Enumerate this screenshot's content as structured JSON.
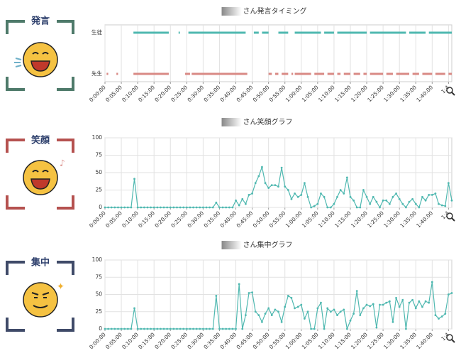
{
  "panel_labels": [
    "発言",
    "笑顔",
    "集中"
  ],
  "chart_data": [
    {
      "type": "timeline",
      "title": "さん発言タイミング",
      "xlim": [
        0,
        106
      ],
      "xticks": [
        {
          "value": 0,
          "label": "0:00:00"
        },
        {
          "value": 5,
          "label": "0:05:00"
        },
        {
          "value": 10,
          "label": "0:10:00"
        },
        {
          "value": 15,
          "label": "0:15:00"
        },
        {
          "value": 20,
          "label": "0:20:00"
        },
        {
          "value": 25,
          "label": "0:25:00"
        },
        {
          "value": 30,
          "label": "0:30:00"
        },
        {
          "value": 35,
          "label": "0:35:00"
        },
        {
          "value": 40,
          "label": "0:40:00"
        },
        {
          "value": 45,
          "label": "0:45:00"
        },
        {
          "value": 50,
          "label": "0:50:00"
        },
        {
          "value": 55,
          "label": "0:55:00"
        },
        {
          "value": 60,
          "label": "1:00:00"
        },
        {
          "value": 65,
          "label": "1:05:00"
        },
        {
          "value": 70,
          "label": "1:10:00"
        },
        {
          "value": 75,
          "label": "1:15:00"
        },
        {
          "value": 80,
          "label": "1:20:00"
        },
        {
          "value": 85,
          "label": "1:25:00"
        },
        {
          "value": 90,
          "label": "1:30:00"
        },
        {
          "value": 95,
          "label": "1:35:00"
        },
        {
          "value": 100,
          "label": "1:40:00"
        },
        {
          "value": 105,
          "label": "1:4"
        }
      ],
      "grid": true,
      "series": [
        {
          "name": "生徒",
          "color": "#4fb8b0",
          "segments": [
            [
              8.7,
              19.5
            ],
            [
              22.5,
              22.9
            ],
            [
              25.5,
              43
            ],
            [
              45.5,
              47
            ],
            [
              48,
              50
            ],
            [
              53,
              56
            ],
            [
              58,
              66
            ],
            [
              67,
              70
            ],
            [
              71,
              80
            ],
            [
              81,
              92
            ],
            [
              93,
              98
            ],
            [
              99,
              106
            ]
          ]
        },
        {
          "name": "先生",
          "color": "#d98a85",
          "segments": [
            [
              0.5,
              1
            ],
            [
              3.5,
              4
            ],
            [
              8.7,
              19.5
            ],
            [
              24.5,
              26
            ],
            [
              26.5,
              43.5
            ],
            [
              50,
              51
            ],
            [
              52,
              53
            ],
            [
              54,
              56
            ],
            [
              57,
              57.5
            ],
            [
              58,
              63
            ],
            [
              64,
              67
            ],
            [
              68,
              70
            ],
            [
              71,
              72
            ],
            [
              73,
              75
            ],
            [
              76,
              78
            ],
            [
              79,
              80
            ],
            [
              81,
              85
            ],
            [
              86,
              88
            ],
            [
              89,
              93
            ],
            [
              94,
              96
            ],
            [
              97,
              100
            ],
            [
              101,
              104
            ],
            [
              105,
              106
            ]
          ]
        }
      ]
    },
    {
      "type": "line",
      "title": "さん笑顔グラフ",
      "xlim": [
        0,
        106
      ],
      "ylim": [
        0,
        100
      ],
      "yticks": [
        0,
        25,
        50,
        75,
        100
      ],
      "xticks": [
        {
          "value": 0,
          "label": "0:00:00"
        },
        {
          "value": 5,
          "label": "0:05:00"
        },
        {
          "value": 10,
          "label": "0:10:00"
        },
        {
          "value": 15,
          "label": "0:15:00"
        },
        {
          "value": 20,
          "label": "0:20:00"
        },
        {
          "value": 25,
          "label": "0:25:00"
        },
        {
          "value": 30,
          "label": "0:30:00"
        },
        {
          "value": 35,
          "label": "0:35:00"
        },
        {
          "value": 40,
          "label": "0:40:00"
        },
        {
          "value": 45,
          "label": "0:45:00"
        },
        {
          "value": 50,
          "label": "0:50:00"
        },
        {
          "value": 55,
          "label": "0:55:00"
        },
        {
          "value": 60,
          "label": "1:00:00"
        },
        {
          "value": 65,
          "label": "1:05:00"
        },
        {
          "value": 70,
          "label": "1:10:00"
        },
        {
          "value": 75,
          "label": "1:15:00"
        },
        {
          "value": 80,
          "label": "1:20:00"
        },
        {
          "value": 85,
          "label": "1:25:00"
        },
        {
          "value": 90,
          "label": "1:30:00"
        },
        {
          "value": 95,
          "label": "1:35:00"
        },
        {
          "value": 100,
          "label": "1:40:00"
        },
        {
          "value": 105,
          "label": "1:4"
        }
      ],
      "grid": true,
      "color": "#4fb8b0",
      "x": [
        0,
        1,
        2,
        3,
        4,
        5,
        6,
        7,
        8,
        9,
        10,
        11,
        12,
        13,
        14,
        15,
        16,
        17,
        18,
        19,
        20,
        21,
        22,
        23,
        24,
        25,
        26,
        27,
        28,
        29,
        30,
        31,
        32,
        33,
        34,
        35,
        36,
        37,
        38,
        39,
        40,
        41,
        42,
        43,
        44,
        45,
        46,
        47,
        48,
        49,
        50,
        51,
        52,
        53,
        54,
        55,
        56,
        57,
        58,
        59,
        60,
        61,
        62,
        63,
        64,
        65,
        66,
        67,
        68,
        69,
        70,
        71,
        72,
        73,
        74,
        75,
        76,
        77,
        78,
        79,
        80,
        81,
        82,
        83,
        84,
        85,
        86,
        87,
        88,
        89,
        90,
        91,
        92,
        93,
        94,
        95,
        96,
        97,
        98,
        99,
        100,
        101,
        102,
        103,
        104,
        105,
        106
      ],
      "values": [
        0,
        0,
        0,
        0,
        0,
        0,
        0,
        0,
        0,
        41,
        0,
        0,
        0,
        0,
        0,
        0,
        0,
        0,
        0,
        0,
        0,
        0,
        0,
        0,
        0,
        0,
        0,
        0,
        0,
        0,
        0,
        0,
        0,
        0,
        7,
        0,
        0,
        0,
        0,
        0,
        10,
        3,
        12,
        5,
        18,
        20,
        35,
        45,
        58,
        35,
        28,
        32,
        32,
        30,
        57,
        30,
        25,
        12,
        20,
        15,
        18,
        35,
        15,
        0,
        2,
        5,
        20,
        15,
        0,
        0,
        5,
        15,
        25,
        20,
        43,
        15,
        10,
        0,
        0,
        25,
        15,
        5,
        15,
        8,
        0,
        10,
        10,
        5,
        15,
        20,
        12,
        5,
        0,
        8,
        12,
        5,
        0,
        15,
        10,
        18,
        18,
        20,
        5,
        3,
        2,
        35,
        10
      ]
    },
    {
      "type": "line",
      "title": "さん集中グラフ",
      "xlim": [
        0,
        106
      ],
      "ylim": [
        0,
        100
      ],
      "yticks": [
        0,
        25,
        50,
        75,
        100
      ],
      "xticks": [
        {
          "value": 0,
          "label": "0:00:00"
        },
        {
          "value": 5,
          "label": "0:05:00"
        },
        {
          "value": 10,
          "label": "0:10:00"
        },
        {
          "value": 15,
          "label": "0:15:00"
        },
        {
          "value": 20,
          "label": "0:20:00"
        },
        {
          "value": 25,
          "label": "0:25:00"
        },
        {
          "value": 30,
          "label": "0:30:00"
        },
        {
          "value": 35,
          "label": "0:35:00"
        },
        {
          "value": 40,
          "label": "0:40:00"
        },
        {
          "value": 45,
          "label": "0:45:00"
        },
        {
          "value": 50,
          "label": "0:50:00"
        },
        {
          "value": 55,
          "label": "0:55:00"
        },
        {
          "value": 60,
          "label": "1:00:00"
        },
        {
          "value": 65,
          "label": "1:05:00"
        },
        {
          "value": 70,
          "label": "1:10:00"
        },
        {
          "value": 75,
          "label": "1:15:00"
        },
        {
          "value": 80,
          "label": "1:20:00"
        },
        {
          "value": 85,
          "label": "1:25:00"
        },
        {
          "value": 90,
          "label": "1:30:00"
        },
        {
          "value": 95,
          "label": "1:35:00"
        },
        {
          "value": 100,
          "label": "1:40:00"
        },
        {
          "value": 105,
          "label": "1:4"
        }
      ],
      "grid": true,
      "color": "#4fb8b0",
      "x": [
        0,
        1,
        2,
        3,
        4,
        5,
        6,
        7,
        8,
        9,
        10,
        11,
        12,
        13,
        14,
        15,
        16,
        17,
        18,
        19,
        20,
        21,
        22,
        23,
        24,
        25,
        26,
        27,
        28,
        29,
        30,
        31,
        32,
        33,
        34,
        35,
        36,
        37,
        38,
        39,
        40,
        41,
        42,
        43,
        44,
        45,
        46,
        47,
        48,
        49,
        50,
        51,
        52,
        53,
        54,
        55,
        56,
        57,
        58,
        59,
        60,
        61,
        62,
        63,
        64,
        65,
        66,
        67,
        68,
        69,
        70,
        71,
        72,
        73,
        74,
        75,
        76,
        77,
        78,
        79,
        80,
        81,
        82,
        83,
        84,
        85,
        86,
        87,
        88,
        89,
        90,
        91,
        92,
        93,
        94,
        95,
        96,
        97,
        98,
        99,
        100,
        101,
        102,
        103,
        104,
        105,
        106
      ],
      "values": [
        0,
        0,
        0,
        0,
        0,
        0,
        0,
        0,
        0,
        30,
        0,
        0,
        0,
        0,
        0,
        0,
        0,
        0,
        0,
        0,
        0,
        0,
        0,
        0,
        0,
        0,
        0,
        0,
        0,
        0,
        0,
        0,
        0,
        0,
        48,
        0,
        0,
        0,
        0,
        0,
        0,
        65,
        0,
        20,
        52,
        53,
        25,
        20,
        10,
        22,
        30,
        20,
        28,
        25,
        10,
        32,
        48,
        45,
        30,
        32,
        35,
        15,
        25,
        0,
        0,
        30,
        38,
        0,
        30,
        25,
        28,
        20,
        25,
        28,
        0,
        12,
        22,
        55,
        20,
        30,
        35,
        33,
        36,
        2,
        35,
        35,
        38,
        40,
        10,
        45,
        32,
        42,
        0,
        38,
        42,
        30,
        40,
        32,
        40,
        38,
        68,
        20,
        15,
        18,
        22,
        50,
        52
      ]
    }
  ]
}
